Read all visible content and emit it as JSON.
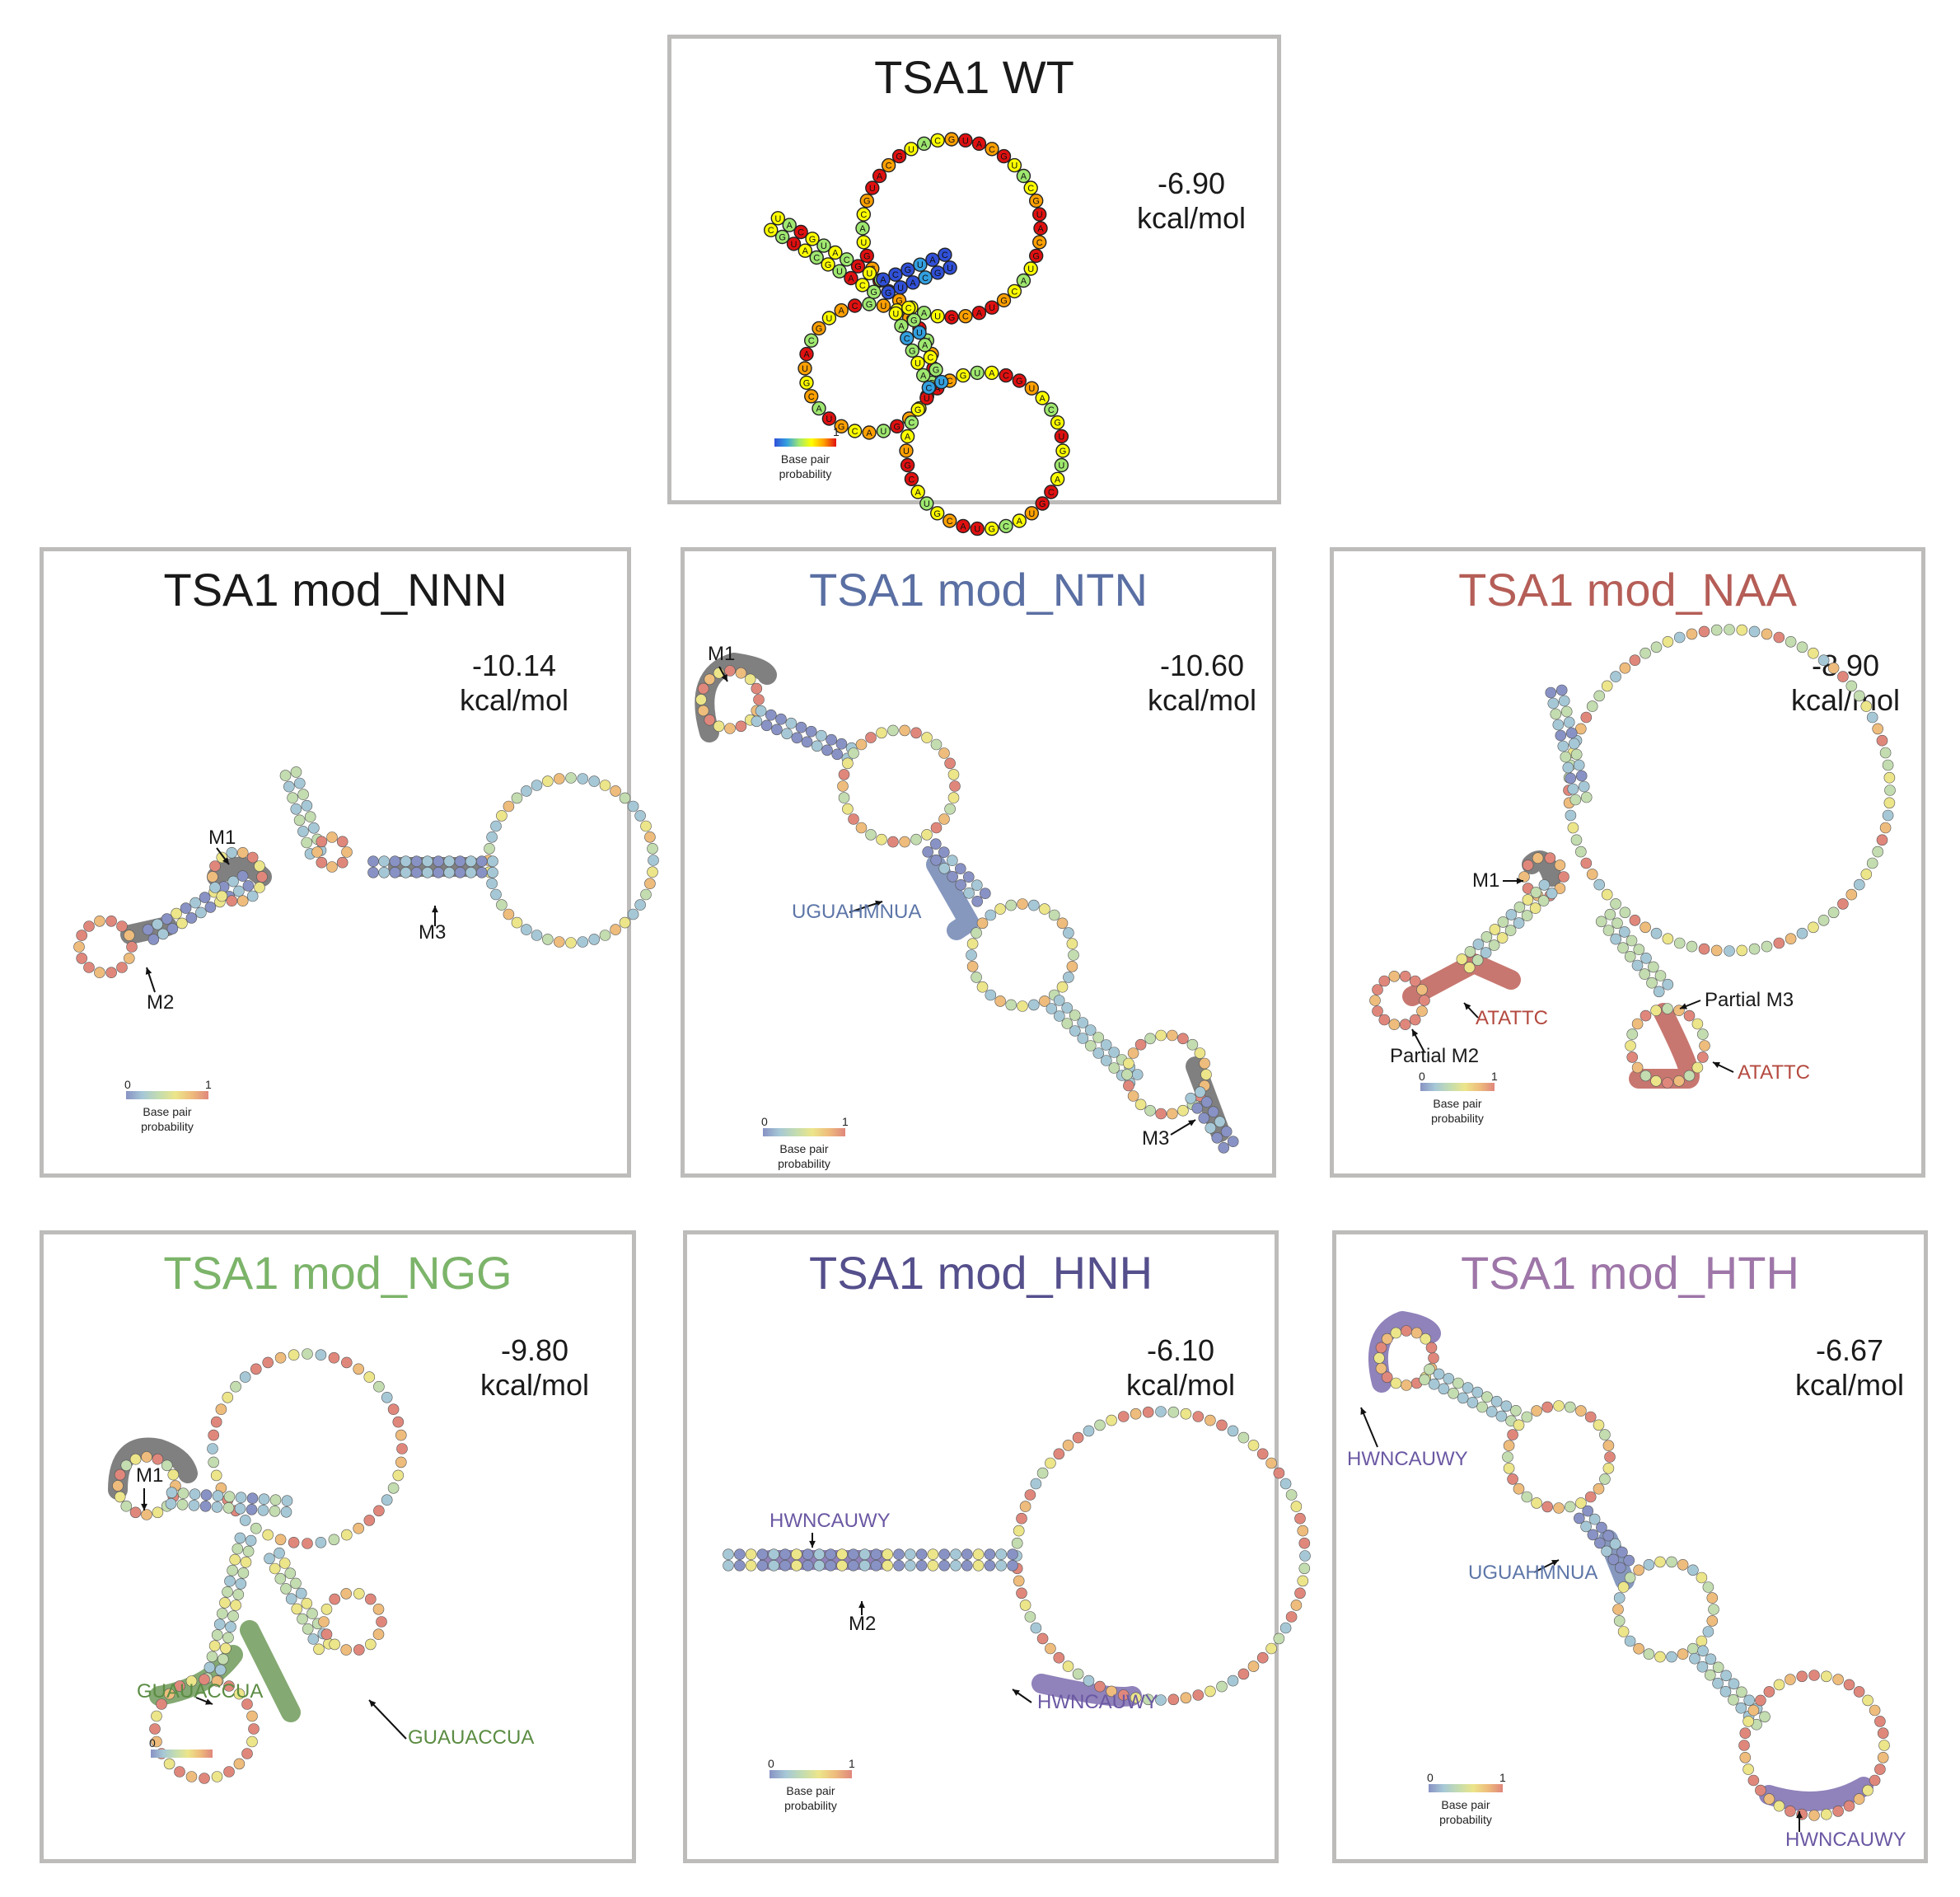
{
  "colors": {
    "black": "#1a1a1a",
    "blue_ntn": "#5a6fa3",
    "red_naa": "#b55e57",
    "green_ngg": "#7cb46a",
    "purple_hnh": "#554f8c",
    "violet_hth": "#9e76a8",
    "motif_green": "#5b8c43",
    "motif_red": "#b44a40",
    "motif_purple": "#6b58a3",
    "motif_blue": "#5d76a8"
  },
  "scale": {
    "min": "0",
    "max": "1",
    "caption_line1": "Base pair",
    "caption_line2": "probability"
  },
  "panels": {
    "wt": {
      "title": "TSA1 WT",
      "energy_value": "-6.90",
      "energy_unit": "kcal/mol"
    },
    "nnn": {
      "title": "TSA1 mod_NNN",
      "energy_value": "-10.14",
      "energy_unit": "kcal/mol",
      "labels": {
        "m1": "M1",
        "m2": "M2",
        "m3": "M3"
      }
    },
    "ntn": {
      "title": "TSA1 mod_NTN",
      "energy_value": "-10.60",
      "energy_unit": "kcal/mol",
      "labels": {
        "m1": "M1",
        "motif": "UGUAHMNUA",
        "m3": "M3"
      }
    },
    "naa": {
      "title": "TSA1 mod_NAA",
      "energy_value": "-8.90",
      "energy_unit": "kcal/mol",
      "labels": {
        "m1": "M1",
        "motif_a": "ATATTC",
        "partial_m2": "Partial M2",
        "partial_m3": "Partial M3",
        "motif_b": "ATATTC"
      }
    },
    "ngg": {
      "title": "TSA1 mod_NGG",
      "energy_value": "-9.80",
      "energy_unit": "kcal/mol",
      "labels": {
        "m1": "M1",
        "motif_a": "GUAUACCUA",
        "motif_b": "GUAUACCUA"
      }
    },
    "hnh": {
      "title": "TSA1 mod_HNH",
      "energy_value": "-6.10",
      "energy_unit": "kcal/mol",
      "labels": {
        "motif_a": "HWNCAUWY",
        "m2": "M2",
        "motif_b": "HWNCAUWY"
      }
    },
    "hth": {
      "title": "TSA1 mod_HTH",
      "energy_value": "-6.67",
      "energy_unit": "kcal/mol",
      "labels": {
        "motif_a": "HWNCAUWY",
        "motif_b": "UGUAHMNUA",
        "motif_c": "HWNCAUWY"
      }
    }
  }
}
